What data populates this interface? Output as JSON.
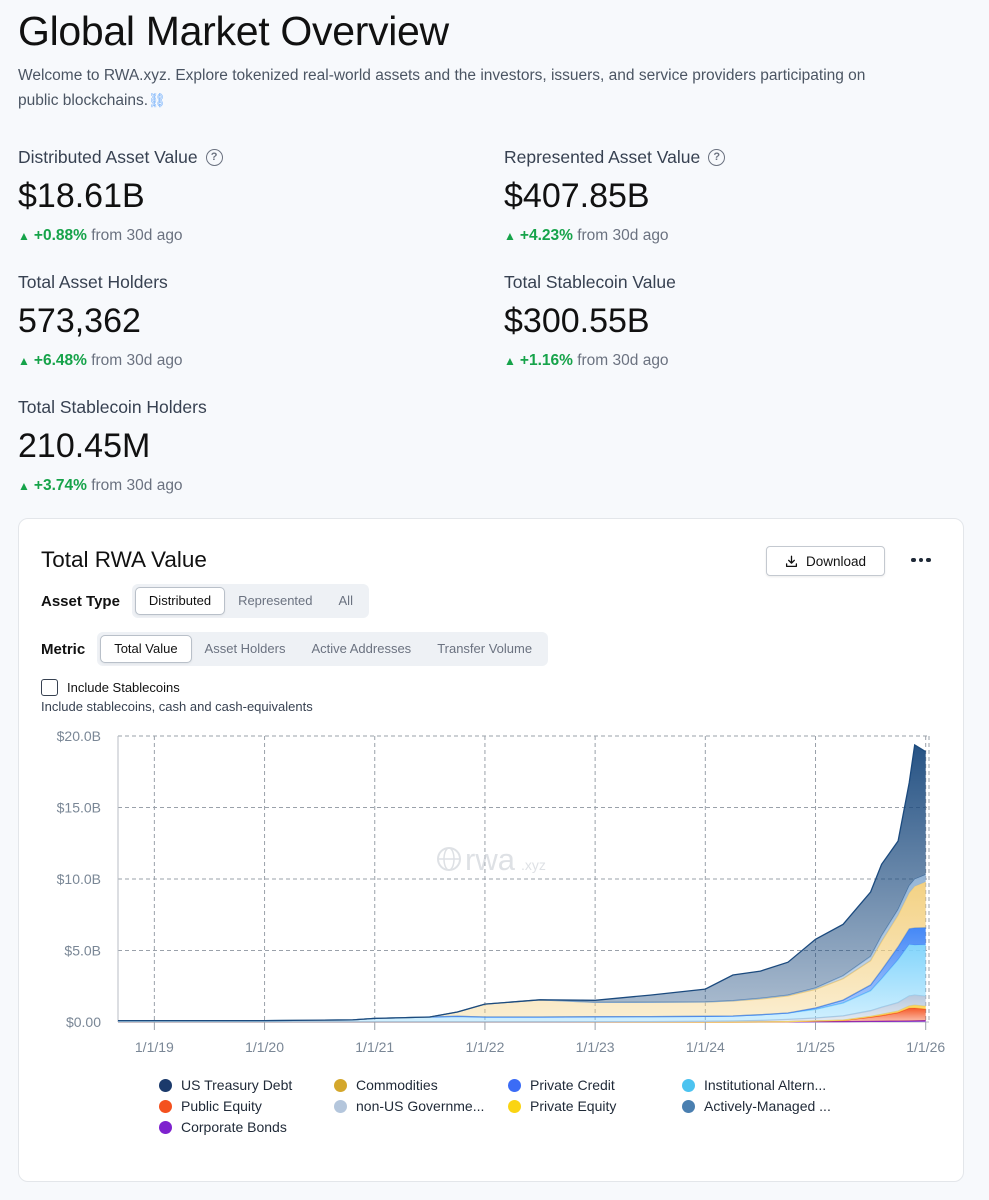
{
  "page": {
    "title": "Global Market Overview",
    "intro": "Welcome to RWA.xyz. Explore tokenized real-world assets and the investors, issuers, and service providers participating on public blockchains.",
    "intro_icon": "⛓"
  },
  "stats": [
    {
      "label": "Distributed Asset Value",
      "has_help": true,
      "value": "$18.61B",
      "change": "+0.88%",
      "suffix": "from 30d ago"
    },
    {
      "label": "Represented Asset Value",
      "has_help": true,
      "value": "$407.85B",
      "change": "+4.23%",
      "suffix": "from 30d ago"
    },
    {
      "label": "Total Asset Holders",
      "has_help": false,
      "value": "573,362",
      "change": "+6.48%",
      "suffix": "from 30d ago"
    },
    {
      "label": "Total Stablecoin Value",
      "has_help": false,
      "value": "$300.55B",
      "change": "+1.16%",
      "suffix": "from 30d ago"
    },
    {
      "label": "Total Stablecoin Holders",
      "has_help": false,
      "value": "210.45M",
      "change": "+3.74%",
      "suffix": "from 30d ago"
    }
  ],
  "help_glyph": "?",
  "up_glyph": "▲",
  "card": {
    "title": "Total RWA Value",
    "download_label": "Download",
    "asset_type": {
      "label": "Asset Type",
      "options": [
        "Distributed",
        "Represented",
        "All"
      ],
      "selected": "Distributed"
    },
    "metric": {
      "label": "Metric",
      "options": [
        "Total Value",
        "Asset Holders",
        "Active Addresses",
        "Transfer Volume"
      ],
      "selected": "Total Value"
    },
    "stablecoins": {
      "label": "Include Stablecoins",
      "description": "Include stablecoins, cash and cash-equivalents",
      "checked": false
    },
    "watermark": {
      "main": "rwa",
      "suffix": ".xyz"
    }
  },
  "chart_data": {
    "type": "area",
    "stacked": true,
    "title": "Total RWA Value",
    "ylabel": "",
    "xlabel": "",
    "ylim": [
      0,
      20
    ],
    "y_unit": "B",
    "y_ticks": [
      "$0.00",
      "$5.0B",
      "$10.0B",
      "$15.0B",
      "$20.0B"
    ],
    "x_ticks": [
      "1/1/19",
      "1/1/20",
      "1/1/21",
      "1/1/22",
      "1/1/23",
      "1/1/24",
      "1/1/25",
      "1/1/26"
    ],
    "x_range": [
      2018.67,
      2026.03
    ],
    "grid": true,
    "legend_position": "bottom",
    "x": [
      2018.67,
      2019.0,
      2020.0,
      2020.8,
      2021.0,
      2021.5,
      2021.75,
      2022.0,
      2022.5,
      2023.0,
      2023.5,
      2024.0,
      2024.25,
      2024.5,
      2024.75,
      2025.0,
      2025.25,
      2025.5,
      2025.6,
      2025.75,
      2025.85,
      2025.9,
      2026.0
    ],
    "series": [
      {
        "name": "Corporate Bonds",
        "color": "#7e22ce",
        "values": [
          0,
          0,
          0,
          0,
          0,
          0,
          0,
          0,
          0,
          0,
          0,
          0,
          0,
          0,
          0.01,
          0.02,
          0.03,
          0.04,
          0.05,
          0.06,
          0.07,
          0.08,
          0.1
        ]
      },
      {
        "name": "Public Equity",
        "color": "#f4511e",
        "values": [
          0,
          0,
          0,
          0,
          0,
          0,
          0,
          0,
          0,
          0,
          0,
          0,
          0,
          0.01,
          0.02,
          0.05,
          0.08,
          0.3,
          0.4,
          0.6,
          0.9,
          0.9,
          0.8
        ]
      },
      {
        "name": "Private Equity",
        "color": "#fcd34d",
        "values": [
          0,
          0,
          0,
          0,
          0,
          0,
          0,
          0,
          0,
          0,
          0,
          0,
          0,
          0,
          0,
          0.01,
          0.02,
          0.05,
          0.08,
          0.1,
          0.15,
          0.2,
          0.2
        ]
      },
      {
        "name": "non-US Government Debt",
        "color": "#b4c6dc",
        "values": [
          0,
          0,
          0,
          0,
          0,
          0,
          0,
          0,
          0,
          0.02,
          0.03,
          0.05,
          0.07,
          0.1,
          0.15,
          0.2,
          0.3,
          0.4,
          0.5,
          0.6,
          0.7,
          0.7,
          0.7
        ]
      },
      {
        "name": "Institutional Alternative Funds",
        "color": "#7dd3fc",
        "values": [
          0.1,
          0.1,
          0.1,
          0.15,
          0.25,
          0.35,
          0.4,
          0.35,
          0.35,
          0.35,
          0.35,
          0.35,
          0.35,
          0.4,
          0.45,
          0.6,
          0.9,
          1.4,
          2.0,
          3.0,
          3.6,
          3.5,
          3.6
        ]
      },
      {
        "name": "Private Credit",
        "color": "#3b82f6",
        "values": [
          0,
          0,
          0,
          0,
          0,
          0,
          0,
          0,
          0,
          0,
          0,
          0,
          0,
          0,
          0,
          0.1,
          0.2,
          0.4,
          0.6,
          0.9,
          1.1,
          1.2,
          1.2
        ]
      },
      {
        "name": "Commodities",
        "color": "#f3cf7d",
        "values": [
          0,
          0,
          0,
          0,
          0,
          0,
          0.3,
          0.9,
          1.2,
          1.0,
          1.0,
          1.0,
          1.05,
          1.1,
          1.2,
          1.3,
          1.5,
          1.7,
          2.0,
          2.2,
          2.5,
          2.9,
          3.2
        ]
      },
      {
        "name": "Actively-Managed Strategies",
        "color": "#8fb1d4",
        "values": [
          0,
          0,
          0,
          0,
          0,
          0,
          0,
          0,
          0,
          0,
          0,
          0,
          0.02,
          0.05,
          0.05,
          0.1,
          0.2,
          0.3,
          0.4,
          0.4,
          0.5,
          0.5,
          0.5
        ]
      },
      {
        "name": "US Treasury Debt",
        "color": "#1b4a7e",
        "values": [
          0,
          0,
          0,
          0,
          0,
          0,
          0,
          0,
          0,
          0.15,
          0.5,
          0.9,
          1.8,
          1.9,
          2.3,
          3.4,
          3.6,
          4.5,
          5.0,
          4.8,
          7.2,
          9.4,
          8.6
        ]
      }
    ]
  },
  "legend": [
    {
      "name": "US Treasury Debt",
      "color": "#1b3a6b"
    },
    {
      "name": "Commodities",
      "color": "#d4a72c"
    },
    {
      "name": "Private Credit",
      "color": "#3b6cf6"
    },
    {
      "name": "Institutional Altern...",
      "color": "#4cc3f0"
    },
    {
      "name": "Public Equity",
      "color": "#f4511e"
    },
    {
      "name": "non-US Governme...",
      "color": "#b4c6dc"
    },
    {
      "name": "Private Equity",
      "color": "#fad413"
    },
    {
      "name": "Actively-Managed ...",
      "color": "#4a7fb0"
    },
    {
      "name": "Corporate Bonds",
      "color": "#7e22ce"
    }
  ]
}
